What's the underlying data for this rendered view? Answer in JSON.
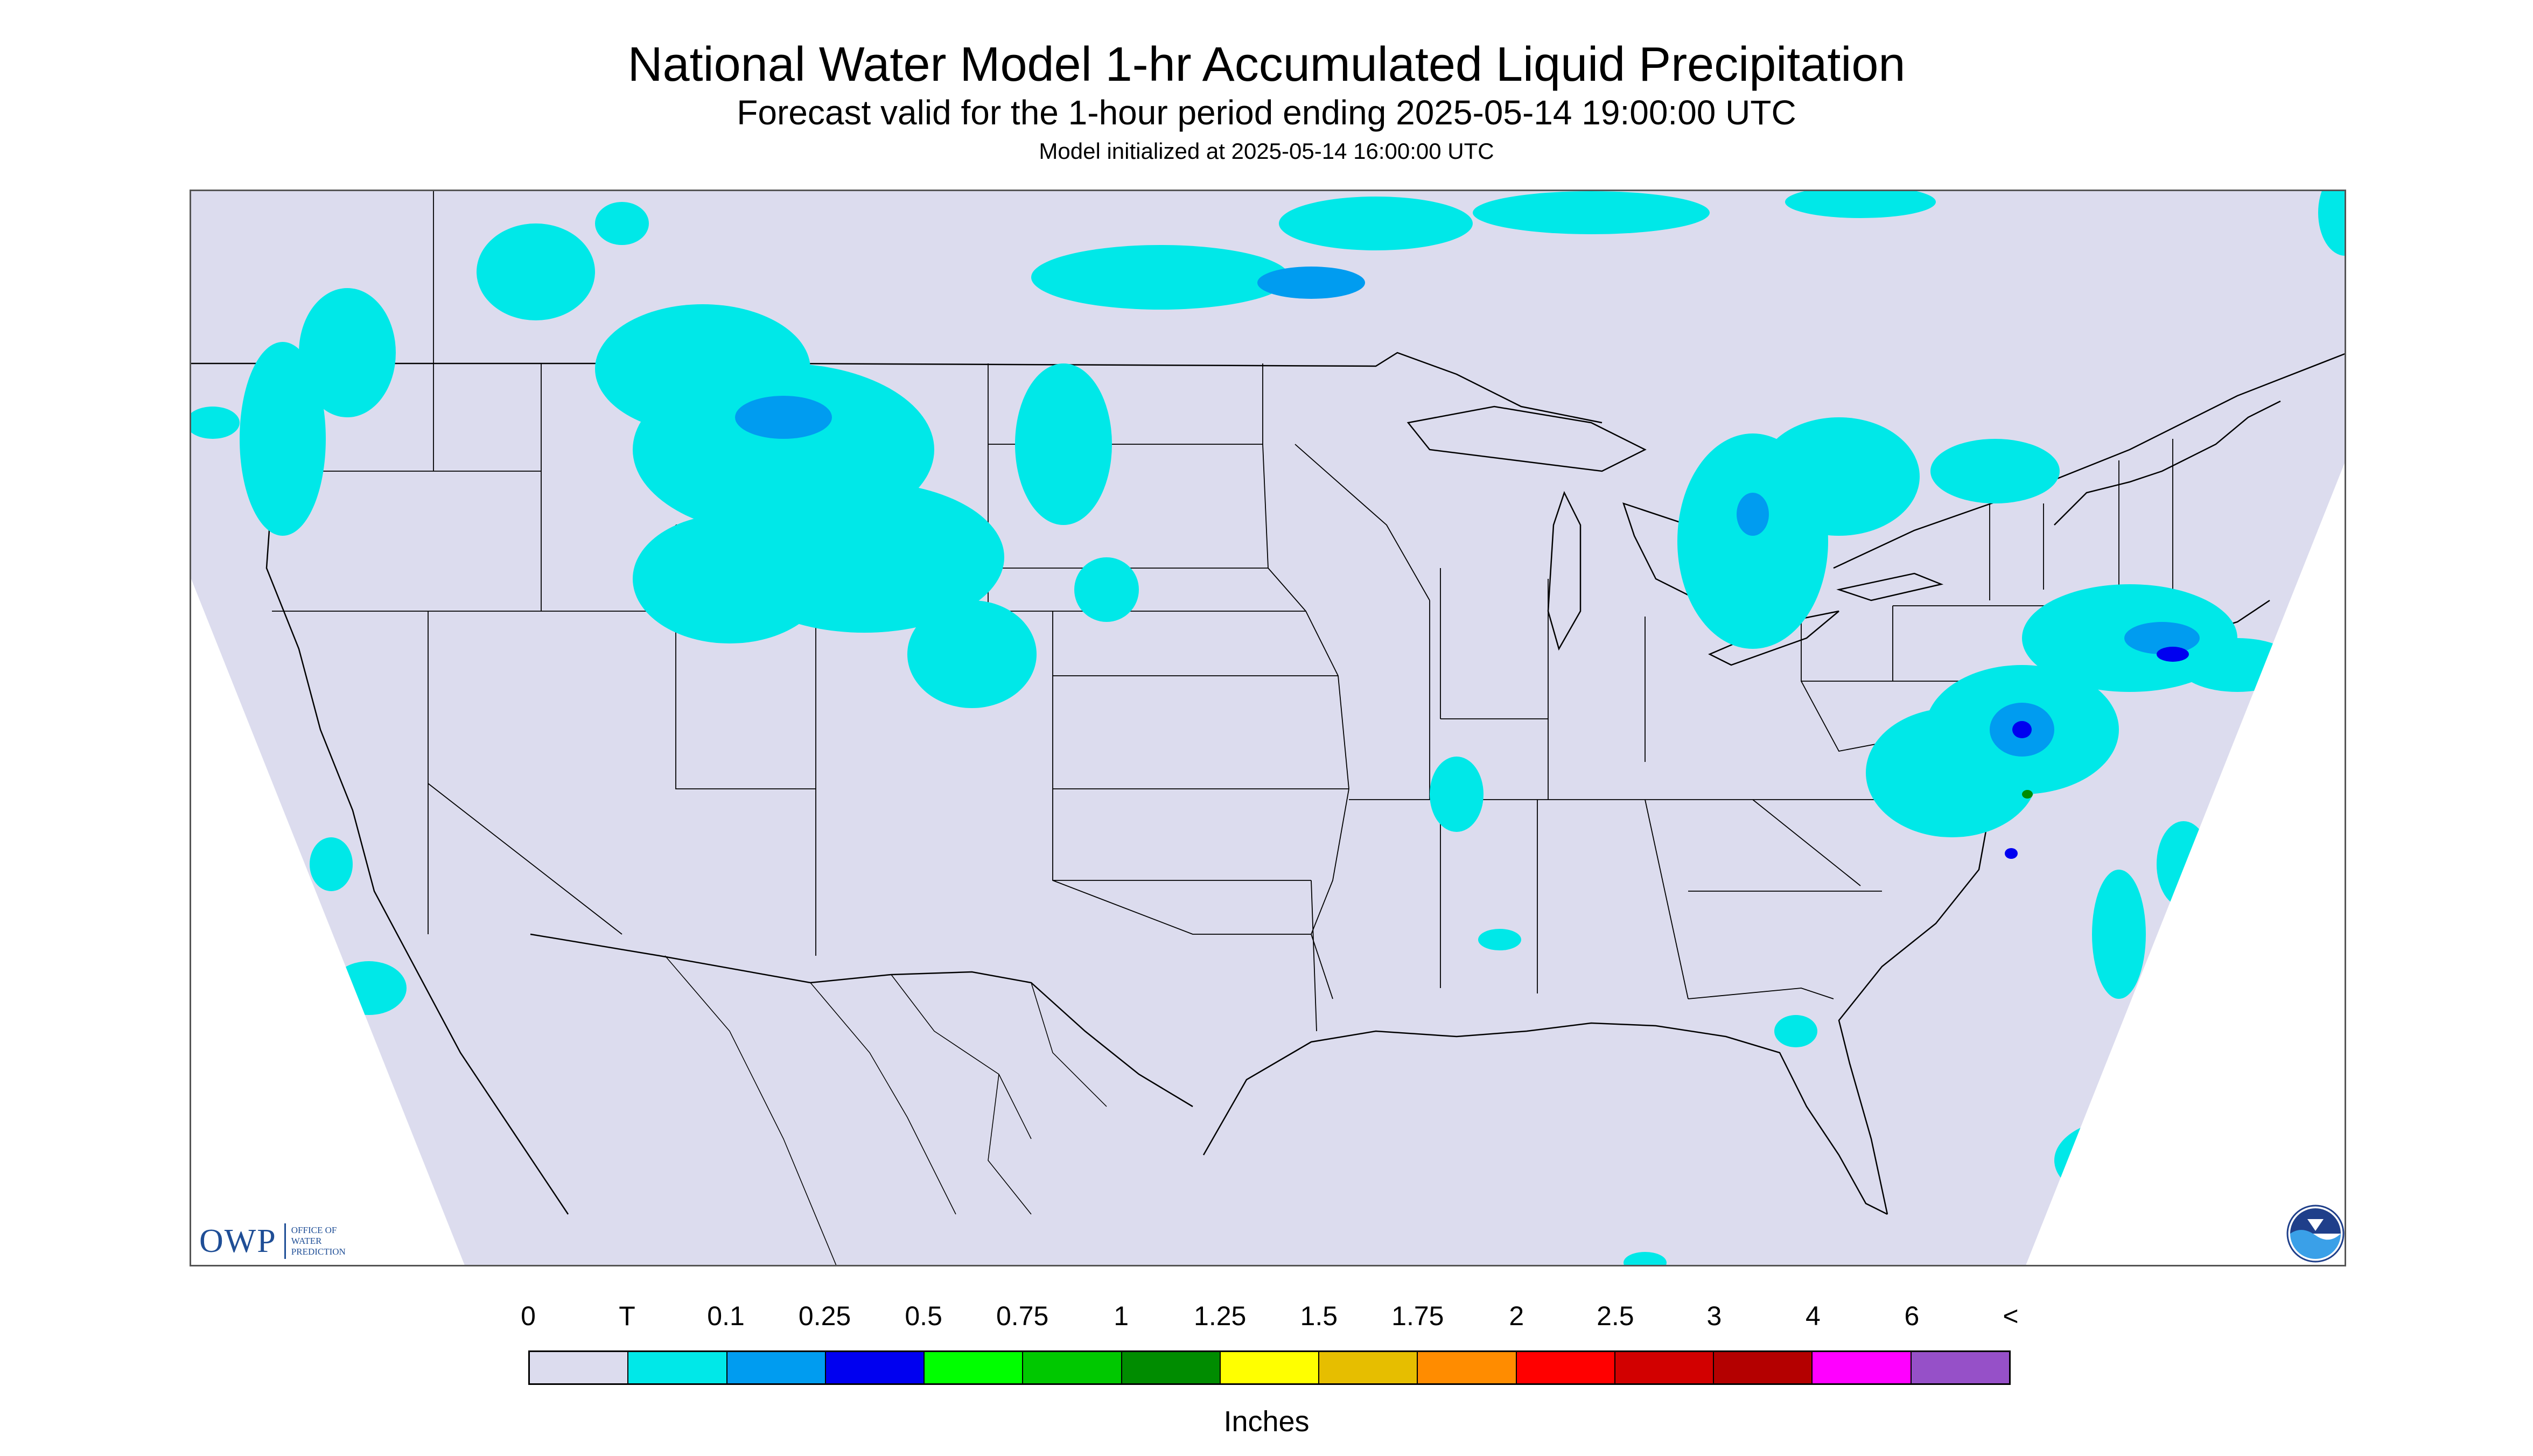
{
  "title": "National Water Model 1-hr Accumulated Liquid Precipitation",
  "subtitle": "Forecast valid for the 1-hour period ending 2025-05-14 19:00:00 UTC",
  "init_text": "Model initialized at 2025-05-14 16:00:00 UTC",
  "map": {
    "background_color": "#dcdcee",
    "outside_domain_color": "#ffffff",
    "boundary_color": "#000000",
    "precip_regions": [
      {
        "area": "Pacific Northwest / Washington",
        "level": "T"
      },
      {
        "area": "Idaho / Montana / Wyoming",
        "level": "T"
      },
      {
        "area": "Southern Alberta / Saskatchewan",
        "level": "0.1"
      },
      {
        "area": "Michigan / Great Lakes",
        "level": "T"
      },
      {
        "area": "Ohio Valley",
        "level": "T"
      },
      {
        "area": "Virginia / North Carolina",
        "level": "0.25"
      },
      {
        "area": "New Jersey / Long Island",
        "level": "0.25"
      },
      {
        "area": "Western Atlantic offshore",
        "level": "0.5"
      }
    ]
  },
  "logos": {
    "owp_main": "OWP",
    "owp_sub": "Office of Water Prediction",
    "noaa_icon": "noaa-logo-icon"
  },
  "legend": {
    "labels": [
      "0",
      "T",
      "0.1",
      "0.25",
      "0.5",
      "0.75",
      "1",
      "1.25",
      "1.5",
      "1.75",
      "2",
      "2.5",
      "3",
      "4",
      "6",
      "<"
    ],
    "colors": [
      "#dcdcee",
      "#00e8e8",
      "#009cf0",
      "#0000f0",
      "#00ff00",
      "#00c800",
      "#008c00",
      "#ffff00",
      "#e6be00",
      "#ff8c00",
      "#ff0000",
      "#d20000",
      "#b40000",
      "#ff00ff",
      "#9650c8"
    ],
    "units": "Inches"
  }
}
